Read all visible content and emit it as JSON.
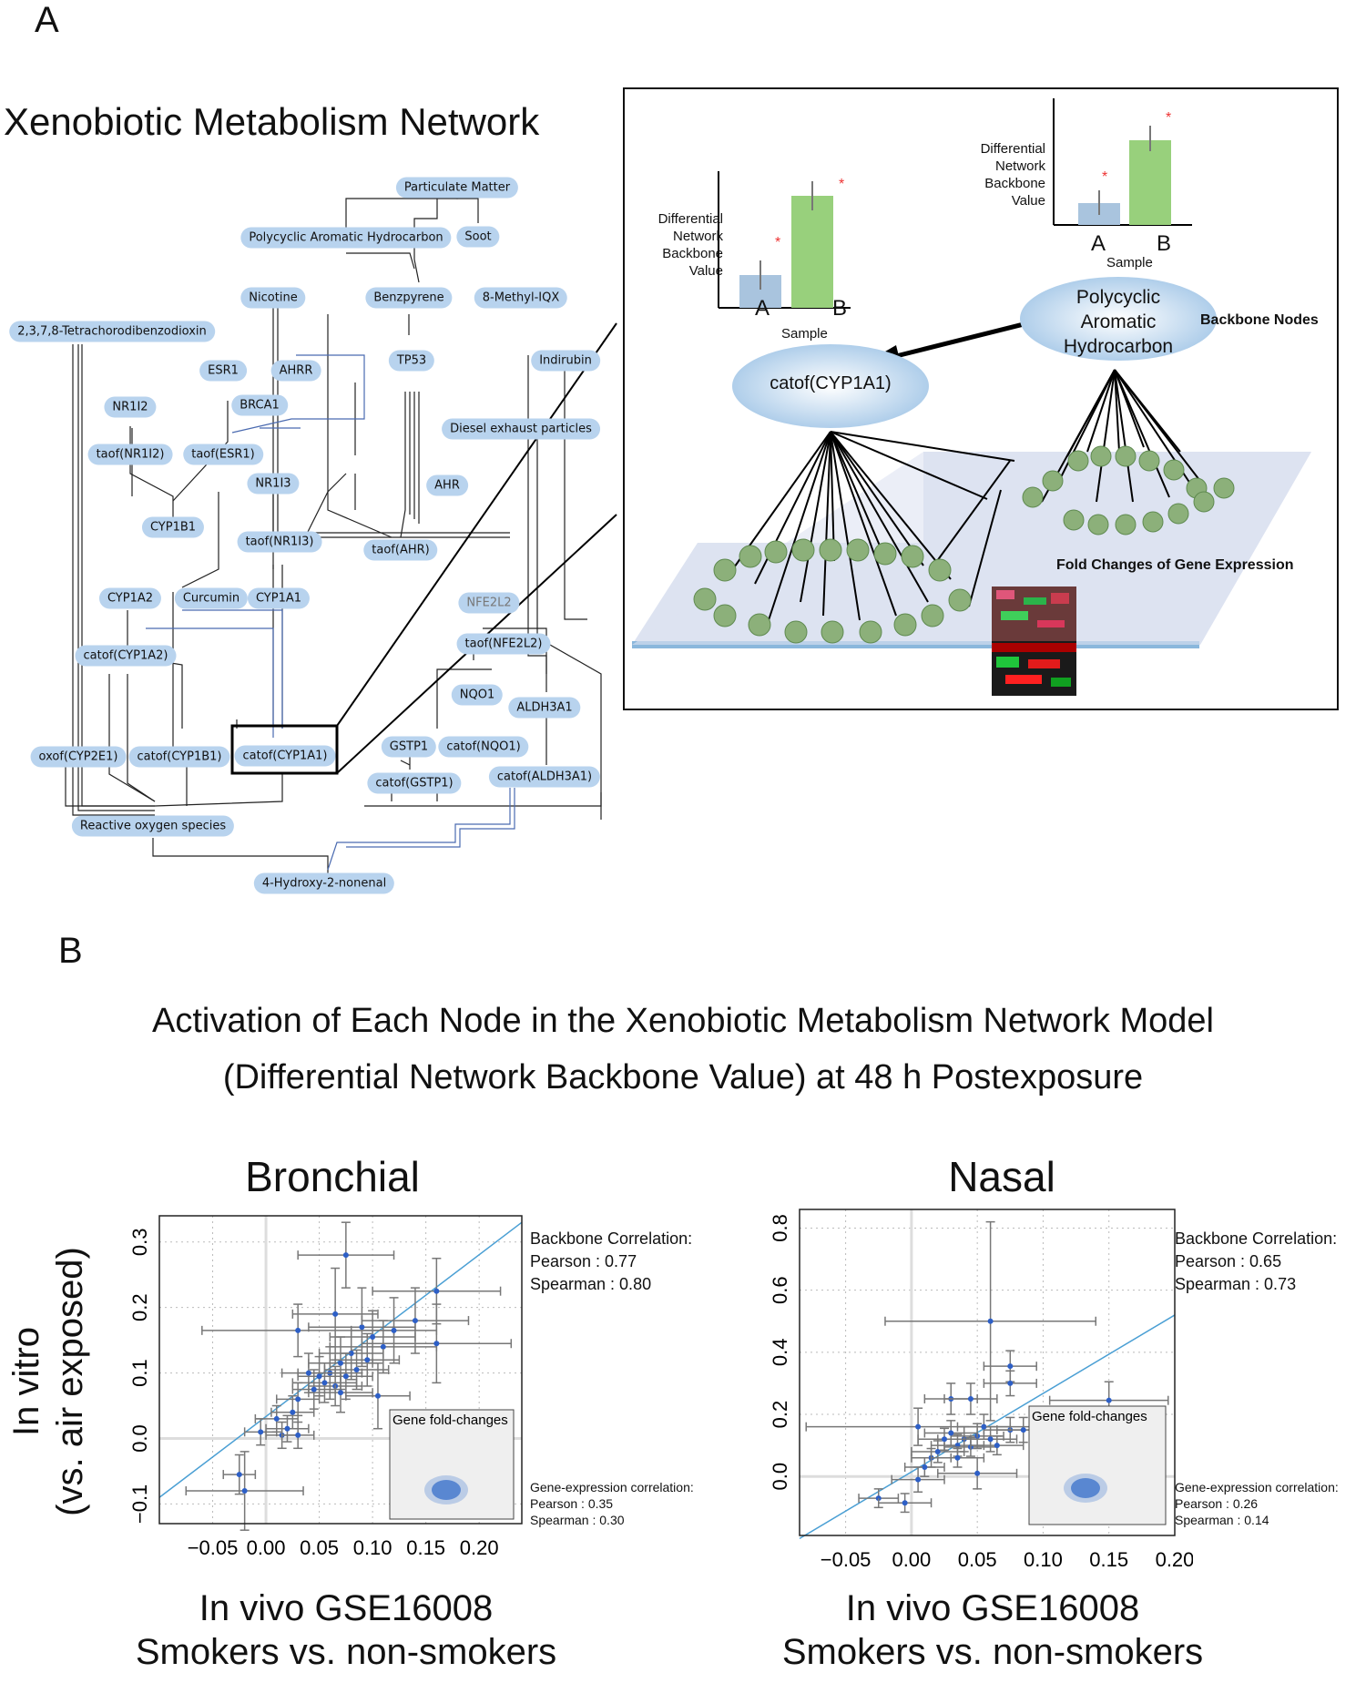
{
  "panelA": {
    "letter": "A",
    "title": "Xenobiotic Metabolism Network",
    "nodes": {
      "particulate_matter": "Particulate Matter",
      "pah": "Polycyclic Aromatic Hydrocarbon",
      "soot": "Soot",
      "nicotine": "Nicotine",
      "benzpyrene": "Benzpyrene",
      "methyl_iqx": "8-Methyl-IQX",
      "tcdd": "2,3,7,8-Tetrachorodibenzodioxin",
      "tp53": "TP53",
      "indirubin": "Indirubin",
      "esr1": "ESR1",
      "ahrr": "AHRR",
      "nr1i2": "NR1I2",
      "brca1": "BRCA1",
      "diesel": "Diesel exhaust particles",
      "taof_nr1i2": "taof(NR1I2)",
      "taof_esr1": "taof(ESR1)",
      "nr1i3": "NR1I3",
      "ahr": "AHR",
      "cyp1b1": "CYP1B1",
      "taof_nr1i3": "taof(NR1I3)",
      "taof_ahr": "taof(AHR)",
      "cyp1a2": "CYP1A2",
      "curcumin": "Curcumin",
      "cyp1a1": "CYP1A1",
      "nfe2l2": "NFE2L2",
      "catof_cyp1a2": "catof(CYP1A2)",
      "taof_nfe2l2": "taof(NFE2L2)",
      "nqo1": "NQO1",
      "aldh3a1": "ALDH3A1",
      "gstp1": "GSTP1",
      "oxof_cyp2e1": "oxof(CYP2E1)",
      "catof_cyp1b1": "catof(CYP1B1)",
      "catof_cyp1a1": "catof(CYP1A1)",
      "catof_nqo1": "catof(NQO1)",
      "catof_gstp1": "catof(GSTP1)",
      "catof_aldh3a1": "catof(ALDH3A1)",
      "ros": "Reactive oxygen species",
      "hne": "4-Hydroxy-2-nonenal"
    },
    "inset": {
      "left_chart": {
        "ylabel": [
          "Differential",
          "Network",
          "Backbone",
          "Value"
        ],
        "xlabel": "Sample",
        "categories": [
          "A",
          "B"
        ],
        "values": [
          0.17,
          0.57
        ],
        "star": "*",
        "colors": [
          "#a9c4de",
          "#98d07c"
        ]
      },
      "right_chart": {
        "ylabel": [
          "Differential",
          "Network",
          "Backbone",
          "Value"
        ],
        "xlabel": "Sample",
        "categories": [
          "A",
          "B"
        ],
        "values": [
          0.17,
          0.66
        ],
        "star": "*",
        "colors": [
          "#a9c4de",
          "#98d07c"
        ]
      },
      "catof_node": "catof(CYP1A1)",
      "pah_node": [
        "Polycyclic",
        "Aromatic",
        "Hydrocarbon"
      ],
      "backbone_label": "Backbone Nodes",
      "fold_label": "Fold Changes of Gene Expression"
    }
  },
  "panelB": {
    "letter": "B",
    "title_line1": "Activation of Each Node in the Xenobiotic Metabolism Network Model",
    "title_line2": "(Differential Network Backbone Value) at 48 h Postexposure",
    "ylabel_line1": "In vitro",
    "ylabel_line2": "(vs. air exposed)",
    "inset_label": "Gene fold-changes"
  },
  "chart_data": [
    {
      "type": "scatter",
      "title": "Bronchial",
      "xlabel": [
        "In vivo GSE16008",
        "Smokers vs. non-smokers"
      ],
      "xlim": [
        -0.1,
        0.24
      ],
      "ylim": [
        -0.13,
        0.34
      ],
      "xticks": [
        "−0.05",
        "0.00",
        "0.05",
        "0.10",
        "0.15",
        "0.20"
      ],
      "xtick_values": [
        -0.05,
        0.0,
        0.05,
        0.1,
        0.15,
        0.2
      ],
      "yticks": [
        "−0.1",
        "0.0",
        "0.1",
        "0.2",
        "0.3"
      ],
      "ytick_values": [
        -0.1,
        0.0,
        0.1,
        0.2,
        0.3
      ],
      "grid": true,
      "correlation": {
        "backbone_title": "Backbone Correlation:",
        "pearson": "Pearson : 0.77",
        "spearman": "Spearman : 0.80",
        "gene_title": "Gene-expression correlation:",
        "gene_pearson": "Pearson : 0.35",
        "gene_spearman": "Spearman : 0.30"
      },
      "fit": [
        [
          -0.1,
          -0.09
        ],
        [
          0.24,
          0.33
        ]
      ],
      "points": [
        {
          "x": 0.075,
          "y": 0.28,
          "xerr": 0.045,
          "yerr": 0.05
        },
        {
          "x": 0.16,
          "y": 0.225,
          "xerr": 0.06,
          "yerr": 0.05
        },
        {
          "x": 0.03,
          "y": 0.165,
          "xerr": 0.09,
          "yerr": 0.04
        },
        {
          "x": 0.065,
          "y": 0.19,
          "xerr": 0.04,
          "yerr": 0.07
        },
        {
          "x": 0.09,
          "y": 0.17,
          "xerr": 0.05,
          "yerr": 0.06
        },
        {
          "x": 0.12,
          "y": 0.165,
          "xerr": 0.04,
          "yerr": 0.05
        },
        {
          "x": 0.14,
          "y": 0.18,
          "xerr": 0.05,
          "yerr": 0.05
        },
        {
          "x": 0.11,
          "y": 0.14,
          "xerr": 0.05,
          "yerr": 0.04
        },
        {
          "x": 0.16,
          "y": 0.145,
          "xerr": 0.07,
          "yerr": 0.06
        },
        {
          "x": 0.105,
          "y": 0.065,
          "xerr": 0.03,
          "yerr": 0.05
        },
        {
          "x": 0.08,
          "y": 0.13,
          "xerr": 0.03,
          "yerr": 0.04
        },
        {
          "x": 0.07,
          "y": 0.115,
          "xerr": 0.03,
          "yerr": 0.04
        },
        {
          "x": 0.06,
          "y": 0.1,
          "xerr": 0.03,
          "yerr": 0.04
        },
        {
          "x": 0.075,
          "y": 0.095,
          "xerr": 0.025,
          "yerr": 0.035
        },
        {
          "x": 0.055,
          "y": 0.085,
          "xerr": 0.03,
          "yerr": 0.03
        },
        {
          "x": 0.065,
          "y": 0.08,
          "xerr": 0.025,
          "yerr": 0.03
        },
        {
          "x": 0.05,
          "y": 0.095,
          "xerr": 0.02,
          "yerr": 0.03
        },
        {
          "x": 0.04,
          "y": 0.1,
          "xerr": 0.025,
          "yerr": 0.03
        },
        {
          "x": 0.085,
          "y": 0.105,
          "xerr": 0.03,
          "yerr": 0.03
        },
        {
          "x": 0.07,
          "y": 0.07,
          "xerr": 0.03,
          "yerr": 0.03
        },
        {
          "x": 0.045,
          "y": 0.075,
          "xerr": 0.02,
          "yerr": 0.03
        },
        {
          "x": 0.03,
          "y": 0.06,
          "xerr": 0.02,
          "yerr": 0.025
        },
        {
          "x": 0.025,
          "y": 0.04,
          "xerr": 0.02,
          "yerr": 0.025
        },
        {
          "x": 0.01,
          "y": 0.03,
          "xerr": 0.02,
          "yerr": 0.02
        },
        {
          "x": 0.02,
          "y": 0.015,
          "xerr": 0.02,
          "yerr": 0.02
        },
        {
          "x": -0.005,
          "y": 0.01,
          "xerr": 0.015,
          "yerr": 0.02
        },
        {
          "x": 0.015,
          "y": 0.005,
          "xerr": 0.015,
          "yerr": 0.02
        },
        {
          "x": 0.03,
          "y": 0.005,
          "xerr": 0.015,
          "yerr": 0.02
        },
        {
          "x": -0.025,
          "y": -0.055,
          "xerr": 0.015,
          "yerr": 0.03
        },
        {
          "x": -0.02,
          "y": -0.08,
          "xerr": 0.055,
          "yerr": 0.06
        },
        {
          "x": 0.095,
          "y": 0.12,
          "xerr": 0.03,
          "yerr": 0.04
        },
        {
          "x": 0.1,
          "y": 0.155,
          "xerr": 0.04,
          "yerr": 0.04
        }
      ]
    },
    {
      "type": "scatter",
      "title": "Nasal",
      "xlabel": [
        "In vivo GSE16008",
        "Smokers vs. non-smokers"
      ],
      "xlim": [
        -0.085,
        0.2
      ],
      "ylim": [
        -0.19,
        0.86
      ],
      "xticks": [
        "−0.05",
        "0.00",
        "0.05",
        "0.10",
        "0.15",
        "0.20"
      ],
      "xtick_values": [
        -0.05,
        0.0,
        0.05,
        0.1,
        0.15,
        0.2
      ],
      "yticks": [
        "0.0",
        "0.2",
        "0.4",
        "0.6",
        "0.8"
      ],
      "ytick_values": [
        0.0,
        0.2,
        0.4,
        0.6,
        0.8
      ],
      "grid": true,
      "correlation": {
        "backbone_title": "Backbone Correlation:",
        "pearson": "Pearson : 0.65",
        "spearman": "Spearman : 0.73",
        "gene_title": "Gene-expression correlation:",
        "gene_pearson": "Pearson : 0.26",
        "gene_spearman": "Spearman : 0.14"
      },
      "fit": [
        [
          -0.085,
          -0.2
        ],
        [
          0.2,
          0.52
        ]
      ],
      "points": [
        {
          "x": 0.06,
          "y": 0.5,
          "xerr": 0.08,
          "yerr": 0.32
        },
        {
          "x": 0.075,
          "y": 0.355,
          "xerr": 0.02,
          "yerr": 0.05
        },
        {
          "x": 0.075,
          "y": 0.3,
          "xerr": 0.02,
          "yerr": 0.04
        },
        {
          "x": 0.15,
          "y": 0.245,
          "xerr": 0.045,
          "yerr": 0.06
        },
        {
          "x": 0.03,
          "y": 0.25,
          "xerr": 0.02,
          "yerr": 0.05
        },
        {
          "x": 0.045,
          "y": 0.25,
          "xerr": 0.02,
          "yerr": 0.05
        },
        {
          "x": 0.005,
          "y": 0.16,
          "xerr": 0.085,
          "yerr": 0.06
        },
        {
          "x": 0.075,
          "y": 0.15,
          "xerr": 0.02,
          "yerr": 0.04
        },
        {
          "x": 0.085,
          "y": 0.15,
          "xerr": 0.02,
          "yerr": 0.04
        },
        {
          "x": 0.055,
          "y": 0.16,
          "xerr": 0.02,
          "yerr": 0.04
        },
        {
          "x": 0.05,
          "y": 0.13,
          "xerr": 0.02,
          "yerr": 0.04
        },
        {
          "x": 0.04,
          "y": 0.12,
          "xerr": 0.02,
          "yerr": 0.04
        },
        {
          "x": 0.035,
          "y": 0.1,
          "xerr": 0.02,
          "yerr": 0.035
        },
        {
          "x": 0.03,
          "y": 0.14,
          "xerr": 0.02,
          "yerr": 0.04
        },
        {
          "x": 0.02,
          "y": 0.08,
          "xerr": 0.02,
          "yerr": 0.035
        },
        {
          "x": 0.025,
          "y": 0.12,
          "xerr": 0.02,
          "yerr": 0.035
        },
        {
          "x": 0.015,
          "y": 0.06,
          "xerr": 0.015,
          "yerr": 0.03
        },
        {
          "x": 0.01,
          "y": 0.03,
          "xerr": 0.015,
          "yerr": 0.03
        },
        {
          "x": 0.045,
          "y": 0.095,
          "xerr": 0.02,
          "yerr": 0.03
        },
        {
          "x": 0.05,
          "y": 0.01,
          "xerr": 0.03,
          "yerr": 0.05
        },
        {
          "x": 0.005,
          "y": -0.01,
          "xerr": 0.02,
          "yerr": 0.04
        },
        {
          "x": -0.025,
          "y": -0.07,
          "xerr": 0.015,
          "yerr": 0.03
        },
        {
          "x": -0.005,
          "y": -0.085,
          "xerr": 0.02,
          "yerr": 0.03
        },
        {
          "x": 0.06,
          "y": 0.12,
          "xerr": 0.02,
          "yerr": 0.04
        },
        {
          "x": 0.065,
          "y": 0.1,
          "xerr": 0.02,
          "yerr": 0.03
        },
        {
          "x": 0.035,
          "y": 0.06,
          "xerr": 0.02,
          "yerr": 0.03
        }
      ]
    }
  ]
}
